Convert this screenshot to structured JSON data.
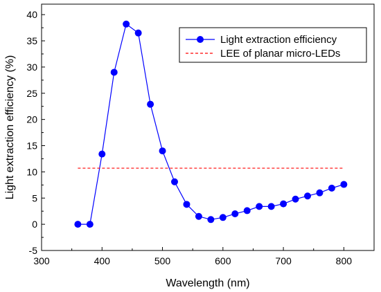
{
  "chart_data": {
    "type": "line",
    "xlabel": "Wavelength (nm)",
    "ylabel": "Light extraction efficiency (%)",
    "xlim": [
      300,
      850
    ],
    "ylim": [
      -5,
      42
    ],
    "xticks": [
      300,
      400,
      500,
      600,
      700,
      800
    ],
    "yticks": [
      -5,
      0,
      5,
      10,
      15,
      20,
      25,
      30,
      35,
      40
    ],
    "grid": false,
    "legend_position": "top-right",
    "series": [
      {
        "name": "Light extraction efficiency",
        "style": "line-markers",
        "color": "#0000ff",
        "x": [
          360,
          380,
          400,
          420,
          440,
          460,
          480,
          500,
          520,
          540,
          560,
          580,
          600,
          620,
          640,
          660,
          680,
          700,
          720,
          740,
          760,
          780,
          800
        ],
        "y": [
          0.0,
          0.0,
          13.4,
          29.0,
          38.2,
          36.5,
          22.9,
          14.0,
          8.1,
          3.8,
          1.5,
          0.9,
          1.3,
          2.0,
          2.6,
          3.4,
          3.4,
          3.9,
          4.8,
          5.4,
          6.0,
          6.9,
          7.6
        ]
      },
      {
        "name": "LEE of planar micro-LEDs",
        "style": "dashed",
        "color": "#ff0000",
        "x": [
          360,
          800
        ],
        "y": [
          10.7,
          10.7
        ]
      }
    ]
  }
}
